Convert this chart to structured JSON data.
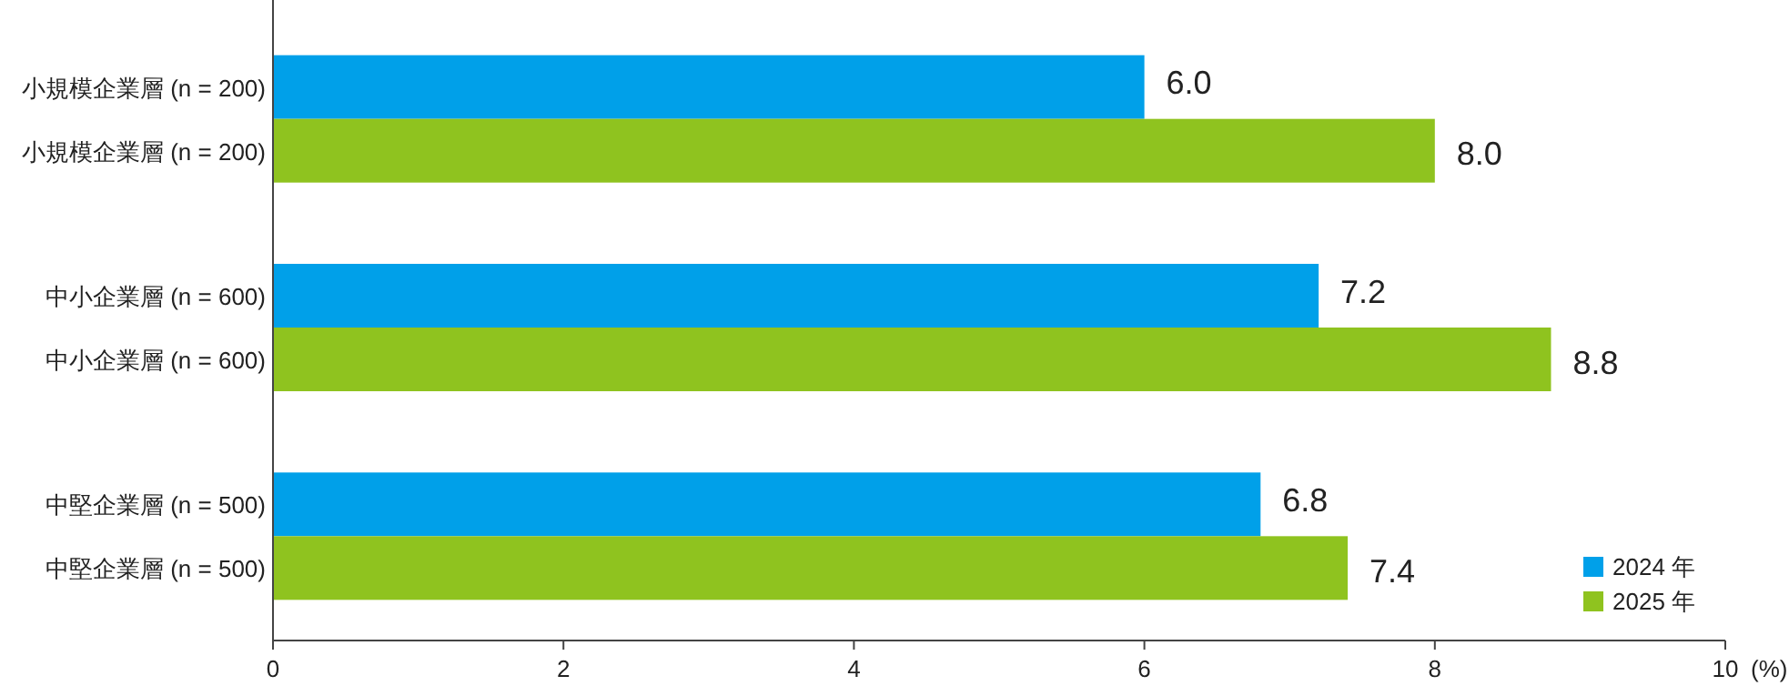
{
  "chart_data": {
    "type": "bar",
    "orientation": "horizontal",
    "categories": [
      "小規模企業層 (n = 200)",
      "中小企業層 (n = 600)",
      "中堅企業層 (n = 500)"
    ],
    "series": [
      {
        "name": "2024 年",
        "color": "#00a0e9",
        "values": [
          6.0,
          7.2,
          6.8
        ],
        "value_labels": [
          "6.0",
          "7.2",
          "6.8"
        ]
      },
      {
        "name": "2025 年",
        "color": "#8fc31f",
        "values": [
          8.0,
          8.8,
          7.4
        ],
        "value_labels": [
          "8.0",
          "8.8",
          "7.4"
        ]
      }
    ],
    "xlim": [
      0,
      10
    ],
    "xticks": [
      0,
      2,
      4,
      6,
      8,
      10
    ],
    "xlabel": "(%)",
    "legend": "bottom right",
    "grid": false
  }
}
